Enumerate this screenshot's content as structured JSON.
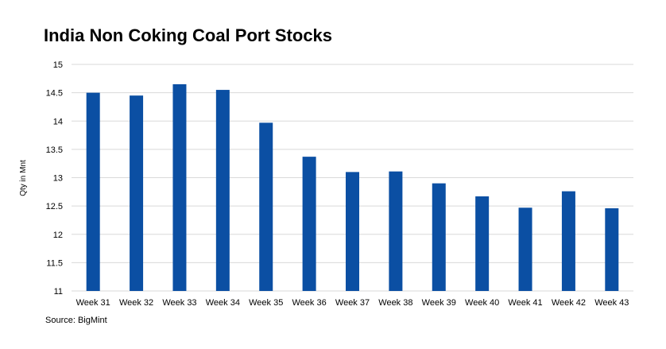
{
  "chart_data": {
    "type": "bar",
    "title": "India Non Coking Coal Port Stocks",
    "ylabel": "Qty in Mnt",
    "xlabel": "",
    "categories": [
      "Week 31",
      "Week 32",
      "Week 33",
      "Week 34",
      "Week 35",
      "Week 36",
      "Week 37",
      "Week 38",
      "Week 39",
      "Week 40",
      "Week 41",
      "Week 42",
      "Week 43"
    ],
    "values": [
      14.5,
      14.45,
      14.65,
      14.55,
      13.97,
      13.37,
      13.1,
      13.11,
      12.9,
      12.67,
      12.47,
      12.76,
      12.46
    ],
    "ylim": [
      11,
      15
    ],
    "yticks": [
      "11",
      "11.5",
      "12",
      "12.5",
      "13",
      "13.5",
      "14",
      "14.5",
      "15"
    ],
    "grid": true,
    "bar_color": "#0b4fa3",
    "grid_color": "#d9d9d9",
    "source": "Source: BigMint"
  }
}
